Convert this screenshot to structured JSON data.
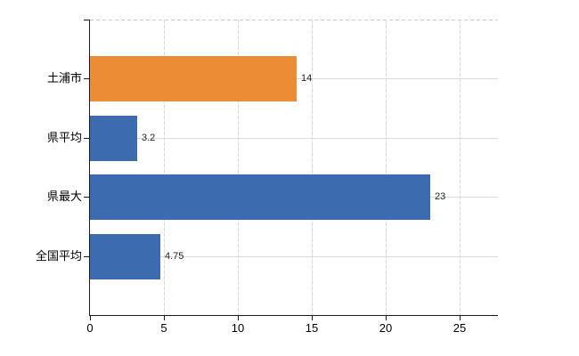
{
  "chart_data": {
    "type": "bar",
    "orientation": "horizontal",
    "title": "",
    "xlabel": "",
    "ylabel": "",
    "categories": [
      "土浦市",
      "県平均",
      "県最大",
      "全国平均"
    ],
    "values": [
      14,
      3.2,
      23,
      4.75
    ],
    "value_labels": [
      "14",
      "3.2",
      "23",
      "4.75"
    ],
    "bar_colors": [
      "#ec8c35",
      "#3c6caf",
      "#3c6caf",
      "#3c6caf"
    ],
    "x_ticks": [
      0,
      5,
      10,
      15,
      20,
      25
    ],
    "x_tick_labels": [
      "0",
      "5",
      "10",
      "15",
      "20",
      "25"
    ],
    "xlim": [
      0,
      27.6
    ],
    "grid": true,
    "legend": false,
    "legend_position": "none"
  },
  "colors": {
    "highlight_bar": "#ec8c35",
    "default_bar": "#3c6caf",
    "grid_h": "#d8ded4",
    "grid_v": "#d8ded4",
    "plot_top_border": "#cccccc",
    "axis": "#1a1a1a",
    "background": "#ffffff",
    "category_text": "#000000",
    "value_text": "#222222"
  }
}
